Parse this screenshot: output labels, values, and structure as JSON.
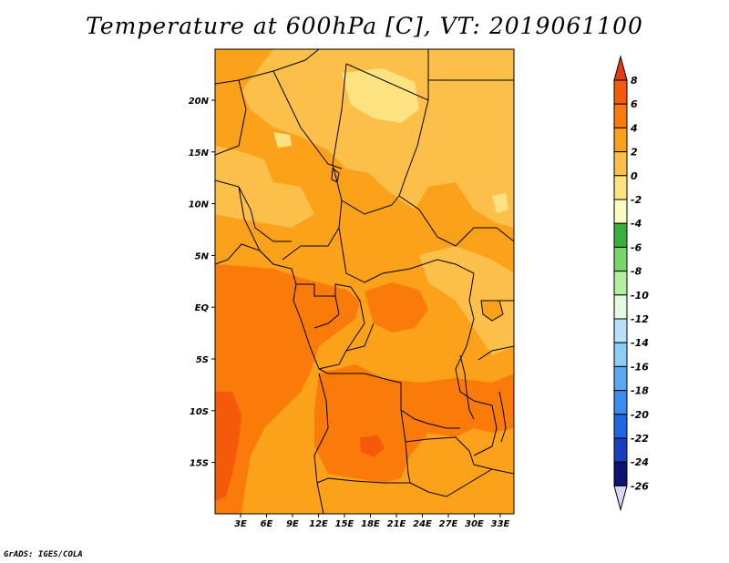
{
  "title": "Temperature at 600hPa [C], VT: 2019061100",
  "credit": "GrADS: IGES/COLA",
  "map": {
    "lat_labels": [
      "20N",
      "15N",
      "10N",
      "5N",
      "EQ",
      "5S",
      "10S",
      "15S"
    ],
    "lon_labels": [
      "3E",
      "6E",
      "9E",
      "12E",
      "15E",
      "18E",
      "21E",
      "24E",
      "27E",
      "30E",
      "33E"
    ]
  },
  "colorbar": {
    "labels": [
      "8",
      "6",
      "4",
      "2",
      "0",
      "-2",
      "-4",
      "-6",
      "-8",
      "-10",
      "-12",
      "-14",
      "-16",
      "-18",
      "-20",
      "-22",
      "-24",
      "-26"
    ],
    "colors": [
      "#e83a10",
      "#f45a0a",
      "#fa7a0a",
      "#fba11a",
      "#fcc04a",
      "#fde282",
      "#fefac0",
      "#37b040",
      "#79d66a",
      "#b2ee9d",
      "#e2fbe0",
      "#b8e0f8",
      "#8ccdf5",
      "#5ca9f0",
      "#3c8cee",
      "#2066e0",
      "#1a3fbe",
      "#0b1470",
      "#d8d8f4"
    ]
  },
  "fill_colors": {
    "c0_2": "#fcc04a",
    "c2_4": "#fba11a",
    "c4_6": "#fa7a0a",
    "c6_8": "#f45a0a",
    "cn2_0": "#fde282"
  }
}
